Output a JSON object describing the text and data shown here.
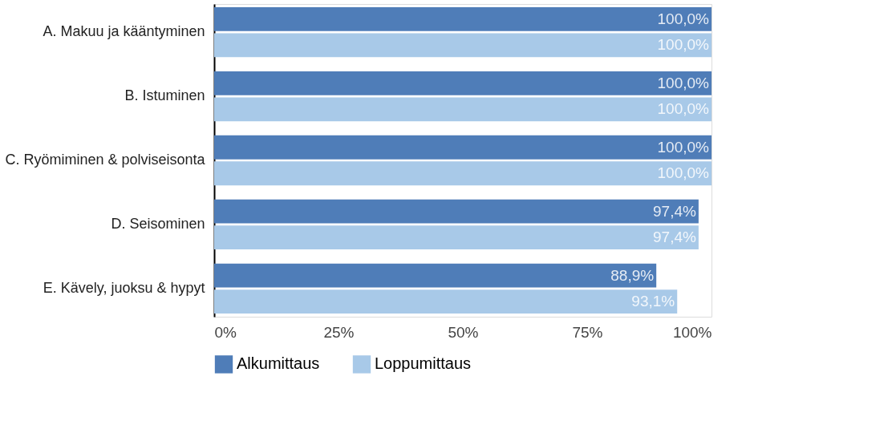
{
  "chart_data": {
    "type": "bar",
    "orientation": "horizontal",
    "categories": [
      "A. Makuu ja kääntyminen",
      "B. Istuminen",
      "C. Ryömiminen & polviseisonta",
      "D. Seisominen",
      "E. Kävely, juoksu & hypyt"
    ],
    "series": [
      {
        "name": "Alkumittaus",
        "color": "#4f7db8",
        "values": [
          100,
          100,
          100,
          97.4,
          88.9
        ],
        "value_labels": [
          "100,0%",
          "100,0%",
          "100,0%",
          "97,4%",
          "88,9%"
        ]
      },
      {
        "name": "Loppumittaus",
        "color": "#a8c9e8",
        "values": [
          100,
          100,
          100,
          97.4,
          93.1
        ],
        "value_labels": [
          "100,0%",
          "100,0%",
          "100,0%",
          "97,4%",
          "93,1%"
        ]
      }
    ],
    "xlim": [
      0,
      100
    ],
    "xticks": [
      {
        "value": 0,
        "label": "0%"
      },
      {
        "value": 25,
        "label": "25%"
      },
      {
        "value": 50,
        "label": "50%"
      },
      {
        "value": 75,
        "label": "75%"
      },
      {
        "value": 100,
        "label": "100%"
      }
    ],
    "grid": false,
    "legend": "bottom"
  }
}
